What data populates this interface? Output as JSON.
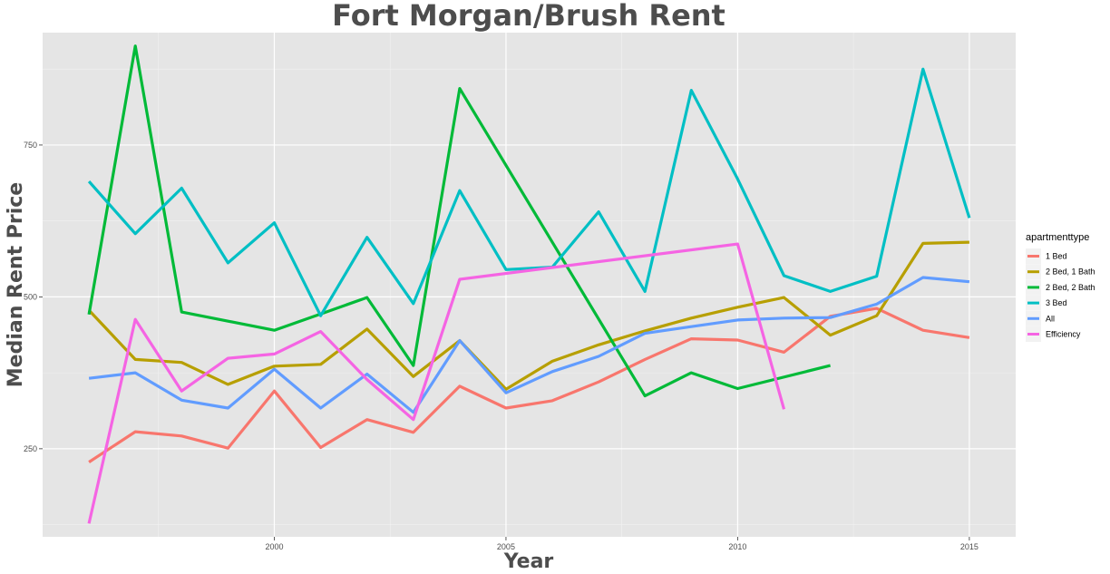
{
  "chart_data": {
    "type": "line",
    "title": "Fort Morgan/Brush Rent",
    "xlabel": "Year",
    "ylabel": "Median Rent Price",
    "xlim": [
      1995,
      2016
    ],
    "ylim": [
      105,
      935
    ],
    "x_ticks": [
      2000,
      2005,
      2010,
      2015
    ],
    "y_ticks": [
      250,
      500,
      750
    ],
    "grid": true,
    "legend": {
      "title": "apartmenttype",
      "position": "right"
    },
    "series": [
      {
        "name": "1 Bed",
        "color": "#F8766D",
        "x": [
          1996,
          1997,
          1998,
          1999,
          2000,
          2001,
          2002,
          2003,
          2004,
          2005,
          2006,
          2007,
          2008,
          2009,
          2010,
          2011,
          2012,
          2013,
          2014,
          2015
        ],
        "y": [
          228,
          278,
          271,
          251,
          345,
          252,
          298,
          277,
          353,
          317,
          329,
          360,
          397,
          431,
          429,
          409,
          468,
          481,
          445,
          433
        ]
      },
      {
        "name": "2 Bed, 1 Bath",
        "color": "#B79F00",
        "x": [
          1996,
          1997,
          1998,
          1999,
          2000,
          2001,
          2002,
          2003,
          2004,
          2005,
          2006,
          2007,
          2008,
          2009,
          2010,
          2011,
          2012,
          2013,
          2014,
          2015
        ],
        "y": [
          478,
          397,
          392,
          356,
          386,
          389,
          447,
          369,
          428,
          348,
          394,
          421,
          444,
          465,
          483,
          499,
          437,
          469,
          588,
          590
        ]
      },
      {
        "name": "2 Bed, 2 Bath",
        "color": "#00BA38",
        "x": [
          1996,
          1997,
          1998,
          2000,
          2001,
          2002,
          2003,
          2004,
          2008,
          2009,
          2010,
          2012
        ],
        "y": [
          471,
          913,
          475,
          445,
          472,
          499,
          387,
          843,
          337,
          375,
          349,
          387
        ]
      },
      {
        "name": "3 Bed",
        "color": "#00BFC4",
        "x": [
          1996,
          1997,
          1998,
          1999,
          2000,
          2001,
          2002,
          2003,
          2004,
          2005,
          2006,
          2007,
          2008,
          2009,
          2010,
          2011,
          2012,
          2013,
          2014,
          2015
        ],
        "y": [
          690,
          604,
          679,
          556,
          622,
          469,
          598,
          489,
          675,
          545,
          549,
          640,
          509,
          840,
          694,
          535,
          509,
          534,
          875,
          630
        ]
      },
      {
        "name": "All",
        "color": "#619CFF",
        "x": [
          1996,
          1997,
          1998,
          1999,
          2000,
          2001,
          2002,
          2003,
          2004,
          2005,
          2006,
          2007,
          2008,
          2009,
          2010,
          2011,
          2012,
          2013,
          2014,
          2015
        ],
        "y": [
          366,
          375,
          330,
          317,
          381,
          317,
          373,
          310,
          428,
          342,
          377,
          402,
          440,
          451,
          462,
          465,
          466,
          488,
          532,
          525
        ]
      },
      {
        "name": "Efficiency",
        "color": "#F564E3",
        "x": [
          1996,
          1997,
          1998,
          1999,
          2000,
          2001,
          2002,
          2003,
          2004,
          2010,
          2011
        ],
        "y": [
          127,
          463,
          345,
          399,
          406,
          443,
          364,
          298,
          529,
          587,
          315
        ]
      }
    ]
  }
}
